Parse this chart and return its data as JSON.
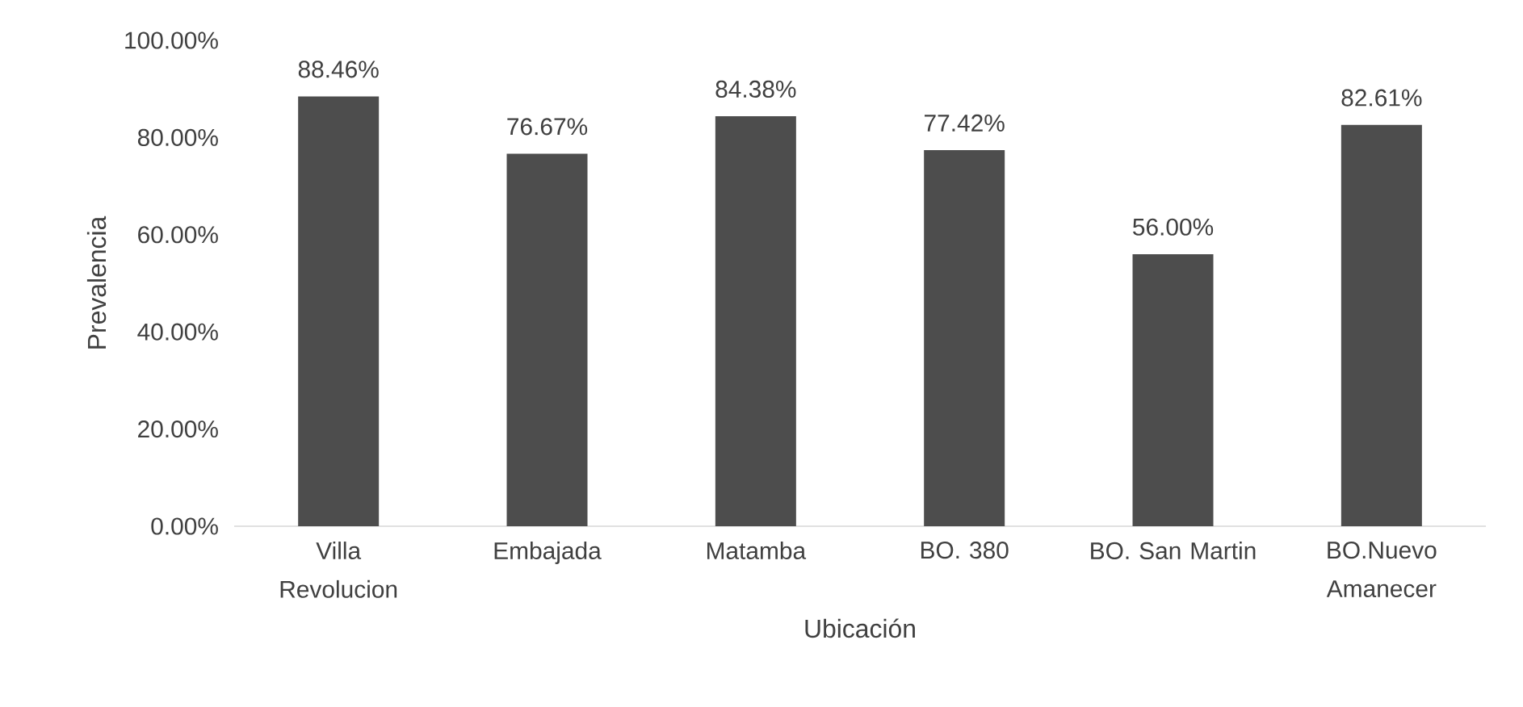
{
  "chart_data": {
    "type": "bar",
    "xlabel": "Ubicación",
    "ylabel": "Prevalencia",
    "categories": [
      "Villa Revolucion",
      "Embajada",
      "Matamba",
      "BO. 380",
      "BO. San Martin",
      "BO.Nuevo Amanecer"
    ],
    "values": [
      88.46,
      76.67,
      84.38,
      77.42,
      56.0,
      82.61
    ],
    "value_labels": [
      "88.46%",
      "76.67%",
      "84.38%",
      "77.42%",
      "56.00%",
      "82.61%"
    ],
    "color": "#4d4d4d",
    "ylim": [
      0,
      100
    ],
    "yticks": [
      {
        "value": 0,
        "label": "0.00%"
      },
      {
        "value": 20,
        "label": "20.00%"
      },
      {
        "value": 40,
        "label": "40.00%"
      },
      {
        "value": 60,
        "label": "60.00%"
      },
      {
        "value": 80,
        "label": "80.00%"
      },
      {
        "value": 100,
        "label": "100.00%"
      }
    ],
    "grid": false
  }
}
